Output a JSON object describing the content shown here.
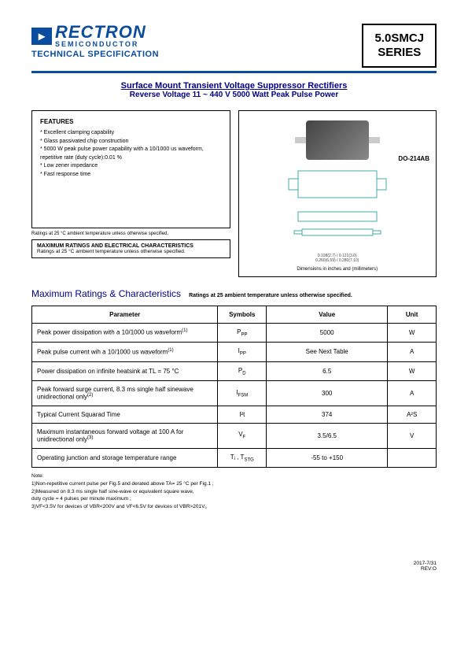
{
  "logo": {
    "icon_glyph": "▸",
    "name": "RECTRON",
    "sub": "SEMICONDUCTOR",
    "tagline": "TECHNICAL SPECIFICATION"
  },
  "series_box": {
    "line1": "5.0SMCJ",
    "line2": "SERIES"
  },
  "title": {
    "line1": "Surface Mount Transient Voltage Suppressor Rectifiers",
    "line2": "Reverse Voltage 11 ~ 440 V  5000 Watt Peak Pulse Power"
  },
  "features": {
    "heading": "FEATURES",
    "items": [
      "Excellent clamping capability",
      "Glass passivated chip construction",
      "5000 W peak pulse power capability with a 10/1000 us waveform, repetitive rate (duty cycle):0.01 %",
      "Low zener impedance",
      "Fast response time"
    ],
    "ratings_note": "Ratings at 25 °C ambient temperature unless otherwise specified."
  },
  "mrec": {
    "title": "MAXIMUM RATINGS AND ELECTRICAL CHARACTERISTICS",
    "note": "Ratings at 25 °C ambient temperature unless otherwise specified."
  },
  "package": {
    "label": "DO-214AB",
    "dims_note": "Dimensions in inches and (millimeters)",
    "dims": [
      "0.108(2.7) / 0.121(3.0)",
      "0.079(2.00) / 0.094(2.40)",
      "0.260(6.59) / 0.280(7.10)",
      "0.006(0.152) / 0.012(0.305)",
      "0.225(5.60) / 0.245(6.20)",
      "0.305(7.74) / 0.320(8.12)"
    ]
  },
  "ratings_section": {
    "title": "Maximum Ratings & Characteristics",
    "subtitle": "Ratings at 25  ambient temperature unless otherwise specified."
  },
  "table": {
    "headers": [
      "Parameter",
      "Symbols",
      "Value",
      "Unit"
    ],
    "rows": [
      {
        "param": "Peak power dissipation with a 10/1000 us waveform",
        "sup": "(1)",
        "sym": "P",
        "sub": "PP",
        "val": "5000",
        "unit": "W"
      },
      {
        "param": "Peak pulse current wih a 10/1000 us waveform",
        "sup": "(1)",
        "sym": "I",
        "sub": "PP",
        "val": "See Next Table",
        "unit": "A"
      },
      {
        "param": "Power dissipation on infinite heatsink at TL = 75 °C",
        "sup": "",
        "sym": "P",
        "sub": "D",
        "val": "6.5",
        "unit": "W"
      },
      {
        "param": "Peak forward surge current, 8.3 ms single half sinewave unidirectional only",
        "sup": "(2)",
        "sym": "I",
        "sub": "FSM",
        "val": "300",
        "unit": "A"
      },
      {
        "param": "Typical Current Squarad Time",
        "sup": "",
        "sym": "I²t",
        "sub": "",
        "val": "374",
        "unit": "A²S"
      },
      {
        "param": "Maximum instantaneous forward voltage at 100 A for unidirectional only",
        "sup": "(3)",
        "sym": "V",
        "sub": "F",
        "val": "3.5/6.5",
        "unit": "V"
      },
      {
        "param": "Operating junction and storage temperature range",
        "sup": "",
        "sym": "Tⱼ , T",
        "sub": "STG",
        "val": "-55 to +150",
        "unit": ""
      }
    ]
  },
  "notes": {
    "heading": "Note:",
    "items": [
      "1)Non-repetitive current pulse per Fig.5 and derated above TA= 25 °C per Fig.1 ;",
      "2)Measured on 8.3 ms single half sine-wave or equivalent square wave,",
      "   duty cycle = 4 pulses per minute maximum ;",
      "3)VF<3.5V for devices of VBR<200V and VF<6.5V for devices of VBR>201V。"
    ]
  },
  "footer": {
    "date": "2017-7/31",
    "rev": "REV:O"
  },
  "colors": {
    "brand": "#0a4d9e",
    "title": "#000080"
  }
}
